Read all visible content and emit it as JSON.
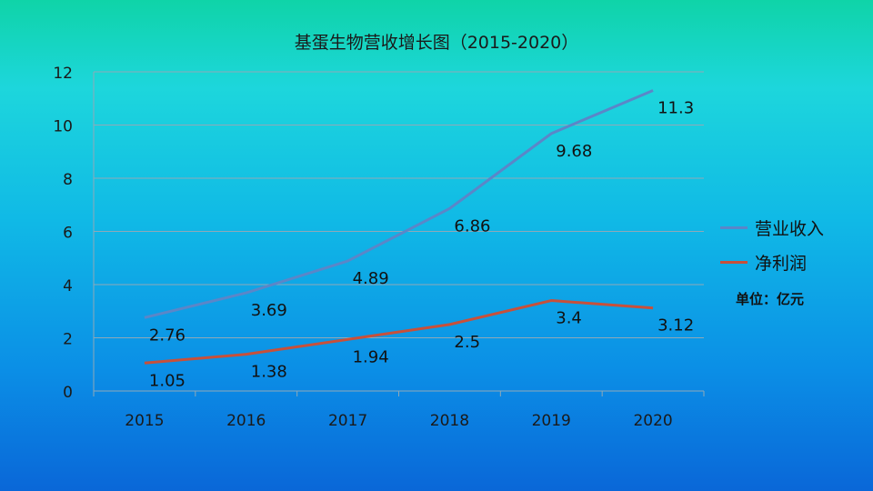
{
  "chart_data": {
    "type": "line",
    "title": "基蛋生物营收增长图（2015-2020）",
    "xlabel": "",
    "ylabel": "",
    "categories": [
      "2015",
      "2016",
      "2017",
      "2018",
      "2019",
      "2020"
    ],
    "ylim": [
      0,
      12
    ],
    "yticks": [
      "0",
      "2",
      "4",
      "6",
      "8",
      "10",
      "12"
    ],
    "grid": true,
    "legend_position": "right",
    "series": [
      {
        "name": "营业收入",
        "values": [
          2.76,
          3.69,
          4.89,
          6.86,
          9.68,
          11.3
        ],
        "labels": [
          "2.76",
          "3.69",
          "4.89",
          "6.86",
          "9.68",
          "11.3"
        ],
        "color": "#5b86c8"
      },
      {
        "name": "净利润",
        "values": [
          1.05,
          1.38,
          1.94,
          2.5,
          3.4,
          3.12
        ],
        "labels": [
          "1.05",
          "1.38",
          "1.94",
          "2.5",
          "3.4",
          "3.12"
        ],
        "color": "#c8503a"
      }
    ],
    "annotation": "单位：亿元"
  }
}
